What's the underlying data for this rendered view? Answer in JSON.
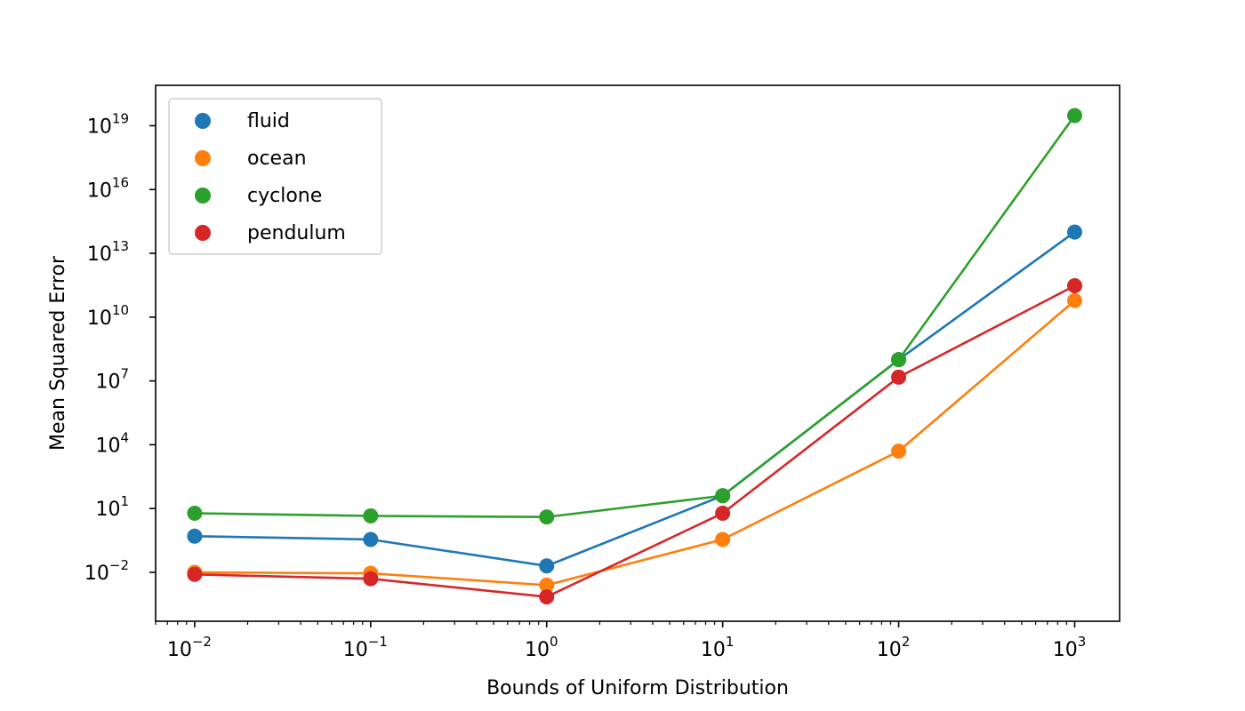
{
  "chart_data": {
    "type": "line",
    "title": "",
    "xlabel": "Bounds of Uniform Distribution",
    "ylabel": "Mean Squared Error",
    "xscale": "log",
    "yscale": "log",
    "x": [
      0.01,
      0.1,
      1,
      10,
      100,
      1000
    ],
    "xlim": [
      0.006,
      1800
    ],
    "ylim_exponent": [
      -4.3,
      20.9
    ],
    "x_ticks": [
      {
        "base": "10",
        "exp": "−2"
      },
      {
        "base": "10",
        "exp": "−1"
      },
      {
        "base": "10",
        "exp": "0"
      },
      {
        "base": "10",
        "exp": "1"
      },
      {
        "base": "10",
        "exp": "2"
      },
      {
        "base": "10",
        "exp": "3"
      }
    ],
    "y_ticks": [
      {
        "base": "10",
        "exp": "−2"
      },
      {
        "base": "10",
        "exp": "1"
      },
      {
        "base": "10",
        "exp": "4"
      },
      {
        "base": "10",
        "exp": "7"
      },
      {
        "base": "10",
        "exp": "10"
      },
      {
        "base": "10",
        "exp": "13"
      },
      {
        "base": "10",
        "exp": "16"
      },
      {
        "base": "10",
        "exp": "19"
      }
    ],
    "legend_position": "top-left",
    "grid": false,
    "series": [
      {
        "name": "fluid",
        "color": "#1f77b4",
        "values": [
          0.5,
          0.35,
          0.02,
          40,
          100000000.0,
          100000000000000.0
        ]
      },
      {
        "name": "ocean",
        "color": "#ff7f0e",
        "values": [
          0.01,
          0.009,
          0.0025,
          0.35,
          5000,
          60000000000.0
        ]
      },
      {
        "name": "cyclone",
        "color": "#2ca02c",
        "values": [
          6,
          4.5,
          4,
          40,
          100000000.0,
          3e+19
        ]
      },
      {
        "name": "pendulum",
        "color": "#d62728",
        "values": [
          0.008,
          0.005,
          0.0007,
          6,
          15000000.0,
          300000000000.0
        ]
      }
    ]
  }
}
